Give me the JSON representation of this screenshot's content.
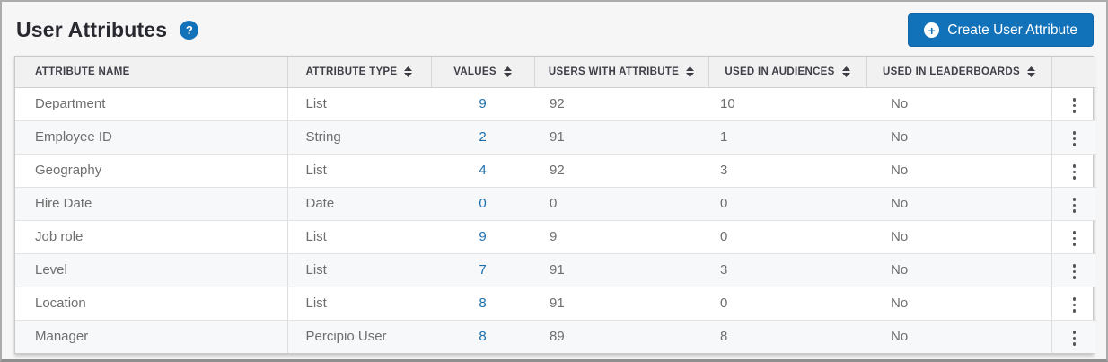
{
  "page": {
    "title": "User Attributes",
    "help_glyph": "?"
  },
  "toolbar": {
    "create_button_label": "Create User Attribute",
    "create_button_glyph": "+"
  },
  "colors": {
    "accent_blue": "#1272b9",
    "link_blue": "#1b6fad",
    "header_bg": "#f1f1f1",
    "row_alt_bg": "#f6f8f9"
  },
  "table": {
    "columns": [
      {
        "label": "ATTRIBUTE NAME",
        "sortable": false
      },
      {
        "label": "ATTRIBUTE TYPE",
        "sortable": true
      },
      {
        "label": "VALUES",
        "sortable": true
      },
      {
        "label": "USERS WITH ATTRIBUTE",
        "sortable": true
      },
      {
        "label": "USED IN AUDIENCES",
        "sortable": true
      },
      {
        "label": "USED IN LEADERBOARDS",
        "sortable": true
      },
      {
        "label": "",
        "sortable": false
      }
    ],
    "rows": [
      {
        "name": "Department",
        "type": "List",
        "values": "9",
        "users": "92",
        "audiences": "10",
        "leaderboards": "No"
      },
      {
        "name": "Employee ID",
        "type": "String",
        "values": "2",
        "users": "91",
        "audiences": "1",
        "leaderboards": "No"
      },
      {
        "name": "Geography",
        "type": "List",
        "values": "4",
        "users": "92",
        "audiences": "3",
        "leaderboards": "No"
      },
      {
        "name": "Hire Date",
        "type": "Date",
        "values": "0",
        "users": "0",
        "audiences": "0",
        "leaderboards": "No"
      },
      {
        "name": "Job role",
        "type": "List",
        "values": "9",
        "users": "9",
        "audiences": "0",
        "leaderboards": "No"
      },
      {
        "name": "Level",
        "type": "List",
        "values": "7",
        "users": "91",
        "audiences": "3",
        "leaderboards": "No"
      },
      {
        "name": "Location",
        "type": "List",
        "values": "8",
        "users": "91",
        "audiences": "0",
        "leaderboards": "No"
      },
      {
        "name": "Manager",
        "type": "Percipio User",
        "values": "8",
        "users": "89",
        "audiences": "8",
        "leaderboards": "No"
      }
    ]
  }
}
